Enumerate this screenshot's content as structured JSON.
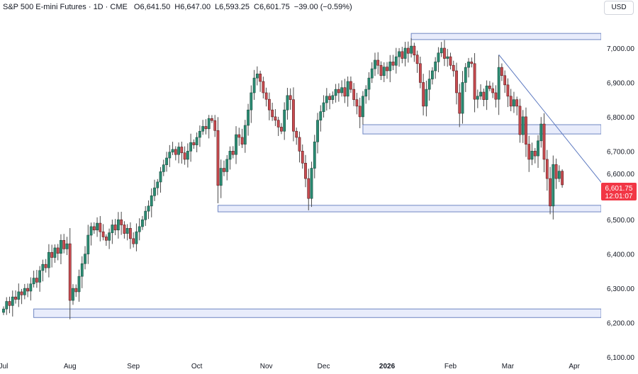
{
  "header": {
    "symbol": "S&P 500 E-mini Futures · 1D · CME",
    "open": "O6,641.50",
    "high": "H6,647.00",
    "low": "L6,593.25",
    "close": "C6,601.75",
    "change": "−39.00 (−0.59%)"
  },
  "currency_button": "USD",
  "price_label": {
    "price": "6,601.75",
    "countdown": "12:01:07",
    "color": "#f23645"
  },
  "colors": {
    "up": "#2a8c73",
    "down": "#c94b50",
    "zone_fill": "#e8ecfb",
    "zone_stroke": "#6f86c2",
    "trendline": "#5b78c0"
  },
  "chart_data": {
    "type": "candlestick",
    "title": "S&P 500 E-mini Futures · 1D · CME",
    "ylim": [
      6050,
      7140
    ],
    "y_ticks": [
      "7,000.00",
      "6,900.00",
      "6,800.00",
      "6,700.00",
      "6,600.00",
      "6,500.00",
      "6,400.00",
      "6,300.00",
      "6,200.00",
      "6,100.00"
    ],
    "y_tick_values": [
      7000,
      6900,
      6800,
      6700,
      6600,
      6500,
      6400,
      6300,
      6200,
      6100
    ],
    "x_ticks": [
      {
        "label": "Jul",
        "bar": 0
      },
      {
        "label": "Aug",
        "bar": 22
      },
      {
        "label": "Sep",
        "bar": 43
      },
      {
        "label": "Oct",
        "bar": 64
      },
      {
        "label": "Nov",
        "bar": 87
      },
      {
        "label": "Dec",
        "bar": 106
      },
      {
        "label": "2026",
        "bar": 127,
        "bold": true
      },
      {
        "label": "Feb",
        "bar": 148
      },
      {
        "label": "Mar",
        "bar": 167
      },
      {
        "label": "Apr",
        "bar": 189
      }
    ],
    "first_open": 6230,
    "closes": [
      6240,
      6262,
      6250,
      6275,
      6268,
      6290,
      6281,
      6300,
      6292,
      6313,
      6330,
      6318,
      6352,
      6370,
      6360,
      6405,
      6390,
      6418,
      6402,
      6440,
      6415,
      6430,
      6265,
      6300,
      6290,
      6335,
      6372,
      6400,
      6455,
      6480,
      6470,
      6490,
      6465,
      6450,
      6440,
      6462,
      6485,
      6470,
      6500,
      6485,
      6460,
      6475,
      6445,
      6430,
      6465,
      6480,
      6500,
      6525,
      6540,
      6570,
      6593,
      6610,
      6640,
      6660,
      6680,
      6697,
      6705,
      6690,
      6712,
      6695,
      6676,
      6700,
      6725,
      6718,
      6740,
      6758,
      6772,
      6765,
      6795,
      6789,
      6760,
      6600,
      6650,
      6640,
      6676,
      6700,
      6690,
      6748,
      6740,
      6720,
      6775,
      6820,
      6870,
      6913,
      6925,
      6903,
      6870,
      6851,
      6820,
      6800,
      6790,
      6770,
      6758,
      6820,
      6862,
      6850,
      6758,
      6740,
      6700,
      6665,
      6620,
      6562,
      6650,
      6727,
      6790,
      6815,
      6841,
      6860,
      6850,
      6862,
      6880,
      6870,
      6885,
      6860,
      6903,
      6880,
      6850,
      6831,
      6800,
      6860,
      6880,
      6913,
      6940,
      6965,
      6950,
      6920,
      6945,
      6934,
      6960,
      6950,
      6975,
      6990,
      6970,
      7000,
      6985,
      7006,
      6980,
      6955,
      6900,
      6831,
      6880,
      6910,
      6934,
      6960,
      6986,
      7000,
      6970,
      6975,
      6950,
      6934,
      6870,
      6810,
      6900,
      6944,
      6960,
      6955,
      6851,
      6860,
      6872,
      6850,
      6890,
      6882,
      6870,
      6851,
      6944,
      6920,
      6893,
      6860,
      6831,
      6850,
      6831,
      6748,
      6800,
      6720,
      6676,
      6700,
      6686,
      6730,
      6779,
      6676,
      6620,
      6540,
      6661,
      6620,
      6641.5,
      6601.75
    ],
    "last_bar": {
      "open": 6641.5,
      "high": 6647.0,
      "low": 6593.25,
      "close": 6601.75
    },
    "zones": [
      {
        "top": 7043,
        "bottom": 7025,
        "start_bar": 135
      },
      {
        "top": 6777,
        "bottom": 6750,
        "start_bar": 119
      },
      {
        "top": 6542,
        "bottom": 6523,
        "start_bar": 71
      },
      {
        "top": 6240,
        "bottom": 6215,
        "start_bar": 10
      }
    ],
    "trendline": {
      "start": {
        "bar": 164,
        "price": 6981
      },
      "end": {
        "bar": 198,
        "price": 6608
      }
    }
  }
}
